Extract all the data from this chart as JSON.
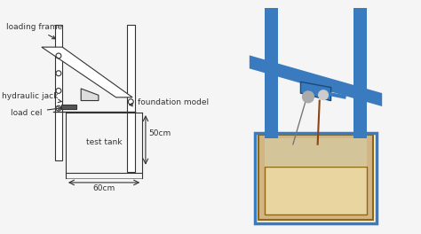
{
  "bg_color": "#f5f5f5",
  "line_color": "#333333",
  "labels": {
    "loading_frame": "loading frame",
    "hydraulic_jack": "hydraulic jack",
    "load_cel": "load cel",
    "foundation_model": "foundation model",
    "test_tank": "test tank",
    "dim_50": "50cm",
    "dim_60": "60cm"
  },
  "font_size": 6.5,
  "blue_color": "#3a7bbf",
  "wood_color": "#d4b483",
  "sand_color": "#d4c49a"
}
